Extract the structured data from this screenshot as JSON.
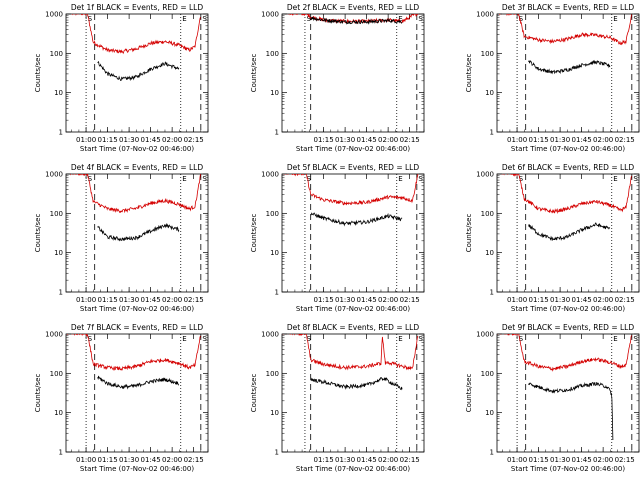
{
  "figure": {
    "colors": {
      "events": "#000000",
      "lld": "#d40000",
      "axis": "#000000",
      "background": "#ffffff"
    },
    "y_ticks": [
      1,
      10,
      100,
      1000
    ],
    "y_tick_labels": [
      "1",
      "10",
      "100",
      "1000"
    ],
    "marker_labels": [
      "S",
      "E",
      "S"
    ]
  },
  "chart_data": [
    {
      "type": "line",
      "title": "Det 1f BLACK = Events, RED = LLD",
      "xlabel": "Start Time (07-Nov-02 00:46:00)",
      "ylabel": "Counts/sec",
      "ylim": [
        1,
        1000
      ],
      "yscale": "log",
      "xlim": [
        "00:46",
        "02:25"
      ],
      "xtick_labels": [
        "01:00",
        "01:15",
        "01:30",
        "01:45",
        "02:00",
        "02:15"
      ],
      "markers": {
        "S_dotted": "01:00",
        "S_dashed": "01:06",
        "E_dotted": "02:06",
        "S2_dashed": "02:20"
      },
      "series": [
        {
          "name": "LLD",
          "color": "#d40000",
          "x": [
            "00:46",
            "01:01",
            "01:05",
            "01:15",
            "01:25",
            "01:35",
            "01:45",
            "01:55",
            "02:05",
            "02:12",
            "02:16",
            "02:20"
          ],
          "values": [
            1100,
            1000,
            190,
            120,
            110,
            130,
            180,
            200,
            160,
            120,
            150,
            1000
          ]
        },
        {
          "name": "Events",
          "color": "#000000",
          "x": [
            "01:08",
            "01:15",
            "01:25",
            "01:35",
            "01:45",
            "01:55",
            "02:05"
          ],
          "values": [
            60,
            30,
            22,
            25,
            40,
            55,
            40
          ]
        }
      ]
    },
    {
      "type": "line",
      "title": "Det 2f BLACK = Events, RED = LLD",
      "xlabel": "Start Time (07-Nov-02 00:46:00)",
      "ylabel": "Counts/sec",
      "ylim": [
        1,
        1000
      ],
      "yscale": "log",
      "xlim": [
        "00:46",
        "02:25"
      ],
      "xtick_labels": [
        "01:15",
        "01:30",
        "01:45",
        "02:00",
        "02:15"
      ],
      "markers": {
        "S_dotted": "01:02",
        "S_dashed": "01:06",
        "E_dotted": "02:06",
        "S2_dashed": "02:20"
      },
      "series": [
        {
          "name": "LLD",
          "color": "#d40000",
          "x": [
            "00:46",
            "01:03",
            "01:06",
            "01:15",
            "01:30",
            "01:45",
            "02:00",
            "02:10",
            "02:17",
            "02:21"
          ],
          "values": [
            1100,
            1000,
            850,
            700,
            650,
            650,
            700,
            650,
            900,
            1050
          ]
        },
        {
          "name": "Events",
          "color": "#000000",
          "x": [
            "01:06",
            "01:15",
            "01:30",
            "01:45",
            "02:00",
            "02:10"
          ],
          "values": [
            800,
            700,
            630,
            630,
            680,
            640
          ]
        }
      ]
    },
    {
      "type": "line",
      "title": "Det 3f BLACK = Events, RED = LLD",
      "xlabel": "Start Time (07-Nov-02 00:46:00)",
      "ylabel": "Counts/sec",
      "ylim": [
        1,
        1000
      ],
      "yscale": "log",
      "xlim": [
        "00:46",
        "02:25"
      ],
      "xtick_labels": [
        "01:00",
        "01:15",
        "01:30",
        "01:45",
        "02:00",
        "02:15"
      ],
      "markers": {
        "S_dotted": "01:00",
        "S_dashed": "01:06",
        "E_dotted": "02:06",
        "S2_dashed": "02:20"
      },
      "series": [
        {
          "name": "LLD",
          "color": "#d40000",
          "x": [
            "00:46",
            "01:01",
            "01:05",
            "01:15",
            "01:25",
            "01:35",
            "01:45",
            "01:55",
            "02:05",
            "02:12",
            "02:16",
            "02:20"
          ],
          "values": [
            1100,
            1000,
            270,
            220,
            200,
            230,
            300,
            290,
            250,
            180,
            200,
            1000
          ]
        },
        {
          "name": "Events",
          "color": "#000000",
          "x": [
            "01:08",
            "01:15",
            "01:25",
            "01:35",
            "01:45",
            "01:55",
            "02:05"
          ],
          "values": [
            65,
            40,
            33,
            38,
            50,
            60,
            48
          ]
        }
      ]
    },
    {
      "type": "line",
      "title": "Det 4f BLACK = Events, RED = LLD",
      "xlabel": "Start Time (07-Nov-02 00:46:00)",
      "ylabel": "Counts/sec",
      "ylim": [
        1,
        1000
      ],
      "yscale": "log",
      "xlim": [
        "00:46",
        "02:25"
      ],
      "xtick_labels": [
        "01:00",
        "01:15",
        "01:30",
        "01:45",
        "02:00",
        "02:15"
      ],
      "markers": {
        "S_dotted": "01:00",
        "S_dashed": "01:06",
        "E_dotted": "02:06",
        "S2_dashed": "02:20"
      },
      "series": [
        {
          "name": "LLD",
          "color": "#d40000",
          "x": [
            "00:46",
            "01:01",
            "01:05",
            "01:15",
            "01:25",
            "01:35",
            "01:45",
            "01:55",
            "02:05",
            "02:12",
            "02:16",
            "02:20"
          ],
          "values": [
            1100,
            1000,
            200,
            130,
            115,
            135,
            180,
            210,
            170,
            130,
            150,
            1000
          ]
        },
        {
          "name": "Events",
          "color": "#000000",
          "x": [
            "01:08",
            "01:15",
            "01:25",
            "01:35",
            "01:45",
            "01:55",
            "02:05"
          ],
          "values": [
            45,
            25,
            22,
            24,
            35,
            50,
            38
          ]
        }
      ]
    },
    {
      "type": "line",
      "title": "Det 5f BLACK = Events, RED = LLD",
      "xlabel": "Start Time (07-Nov-02 00:46:00)",
      "ylabel": "Counts/sec",
      "ylim": [
        1,
        1000
      ],
      "yscale": "log",
      "xlim": [
        "00:46",
        "02:25"
      ],
      "xtick_labels": [
        "01:15",
        "01:30",
        "01:45",
        "02:00",
        "02:15"
      ],
      "markers": {
        "S_dotted": "01:02",
        "S_dashed": "01:06",
        "E_dotted": "02:06",
        "S2_dashed": "02:20"
      },
      "series": [
        {
          "name": "LLD",
          "color": "#d40000",
          "x": [
            "00:46",
            "01:03",
            "01:06",
            "01:15",
            "01:30",
            "01:45",
            "02:00",
            "02:10",
            "02:17",
            "02:21"
          ],
          "values": [
            1100,
            1000,
            300,
            220,
            180,
            190,
            260,
            250,
            210,
            1050
          ]
        },
        {
          "name": "Events",
          "color": "#000000",
          "x": [
            "01:06",
            "01:15",
            "01:30",
            "01:45",
            "02:00",
            "02:10"
          ],
          "values": [
            100,
            75,
            55,
            60,
            85,
            70
          ]
        }
      ]
    },
    {
      "type": "line",
      "title": "Det 6f BLACK = Events, RED = LLD",
      "xlabel": "Start Time (07-Nov-02 00:46:00)",
      "ylabel": "Counts/sec",
      "ylim": [
        1,
        1000
      ],
      "yscale": "log",
      "xlim": [
        "00:46",
        "02:25"
      ],
      "xtick_labels": [
        "01:00",
        "01:15",
        "01:30",
        "01:45",
        "02:00",
        "02:15"
      ],
      "markers": {
        "S_dotted": "01:00",
        "S_dashed": "01:06",
        "E_dotted": "02:06",
        "S2_dashed": "02:20"
      },
      "series": [
        {
          "name": "LLD",
          "color": "#d40000",
          "x": [
            "00:46",
            "01:01",
            "01:05",
            "01:15",
            "01:25",
            "01:35",
            "01:45",
            "01:55",
            "02:05",
            "02:12",
            "02:16",
            "02:20"
          ],
          "values": [
            1100,
            1000,
            240,
            130,
            110,
            130,
            175,
            200,
            160,
            120,
            140,
            1000
          ]
        },
        {
          "name": "Events",
          "color": "#000000",
          "x": [
            "01:08",
            "01:15",
            "01:25",
            "01:35",
            "01:45",
            "01:55",
            "02:05"
          ],
          "values": [
            50,
            30,
            22,
            25,
            38,
            52,
            40
          ]
        }
      ]
    },
    {
      "type": "line",
      "title": "Det 7f BLACK = Events, RED = LLD",
      "xlabel": "Start Time (07-Nov-02 00:46:00)",
      "ylabel": "Counts/sec",
      "ylim": [
        1,
        1000
      ],
      "yscale": "log",
      "xlim": [
        "00:46",
        "02:25"
      ],
      "xtick_labels": [
        "01:00",
        "01:15",
        "01:30",
        "01:45",
        "02:00",
        "02:15"
      ],
      "markers": {
        "S_dotted": "01:00",
        "S_dashed": "01:06",
        "E_dotted": "02:06",
        "S2_dashed": "02:20"
      },
      "series": [
        {
          "name": "LLD",
          "color": "#d40000",
          "x": [
            "00:46",
            "01:01",
            "01:05",
            "01:15",
            "01:25",
            "01:35",
            "01:45",
            "01:55",
            "02:05",
            "02:12",
            "02:16",
            "02:20"
          ],
          "values": [
            1100,
            1000,
            170,
            140,
            130,
            150,
            200,
            220,
            180,
            140,
            160,
            1000
          ]
        },
        {
          "name": "Events",
          "color": "#000000",
          "x": [
            "01:08",
            "01:15",
            "01:25",
            "01:35",
            "01:45",
            "01:55",
            "02:05"
          ],
          "values": [
            80,
            55,
            45,
            48,
            62,
            70,
            55
          ]
        }
      ]
    },
    {
      "type": "line",
      "title": "Det 8f BLACK = Events, RED = LLD",
      "xlabel": "Start Time (07-Nov-02 00:46:00)",
      "ylabel": "Counts/sec",
      "ylim": [
        1,
        1000
      ],
      "yscale": "log",
      "xlim": [
        "00:46",
        "02:25"
      ],
      "xtick_labels": [
        "01:15",
        "01:30",
        "01:45",
        "02:00",
        "02:15"
      ],
      "markers": {
        "S_dotted": "01:02",
        "S_dashed": "01:06",
        "E_dotted": "02:06",
        "S2_dashed": "02:20"
      },
      "series": [
        {
          "name": "LLD",
          "color": "#d40000",
          "x": [
            "00:46",
            "01:03",
            "01:06",
            "01:15",
            "01:30",
            "01:45",
            "01:55",
            "01:56",
            "01:58",
            "02:00",
            "02:10",
            "02:17",
            "02:21"
          ],
          "values": [
            1100,
            1000,
            220,
            170,
            140,
            150,
            180,
            900,
            180,
            190,
            150,
            130,
            1050
          ]
        },
        {
          "name": "Events",
          "color": "#000000",
          "x": [
            "01:06",
            "01:15",
            "01:30",
            "01:45",
            "01:57",
            "02:05",
            "02:10"
          ],
          "values": [
            70,
            60,
            45,
            50,
            75,
            50,
            40
          ]
        }
      ]
    },
    {
      "type": "line",
      "title": "Det 9f BLACK = Events, RED = LLD",
      "xlabel": "Start Time (07-Nov-02 00:46:00)",
      "ylabel": "Counts/sec",
      "ylim": [
        1,
        1000
      ],
      "yscale": "log",
      "xlim": [
        "00:46",
        "02:25"
      ],
      "xtick_labels": [
        "01:00",
        "01:15",
        "01:30",
        "01:45",
        "02:00",
        "02:15"
      ],
      "markers": {
        "S_dotted": "01:00",
        "S_dashed": "01:06",
        "E_dotted": "02:06",
        "S2_dashed": "02:20"
      },
      "series": [
        {
          "name": "LLD",
          "color": "#d40000",
          "x": [
            "00:46",
            "01:01",
            "01:05",
            "01:15",
            "01:25",
            "01:35",
            "01:45",
            "01:55",
            "02:05",
            "02:12",
            "02:16",
            "02:20"
          ],
          "values": [
            1100,
            1000,
            200,
            150,
            130,
            150,
            200,
            230,
            190,
            150,
            160,
            1000
          ]
        },
        {
          "name": "Events",
          "color": "#000000",
          "x": [
            "01:08",
            "01:15",
            "01:25",
            "01:35",
            "01:45",
            "01:55",
            "02:03",
            "02:06",
            "02:07"
          ],
          "values": [
            55,
            45,
            35,
            38,
            48,
            55,
            45,
            30,
            1
          ]
        }
      ]
    }
  ]
}
